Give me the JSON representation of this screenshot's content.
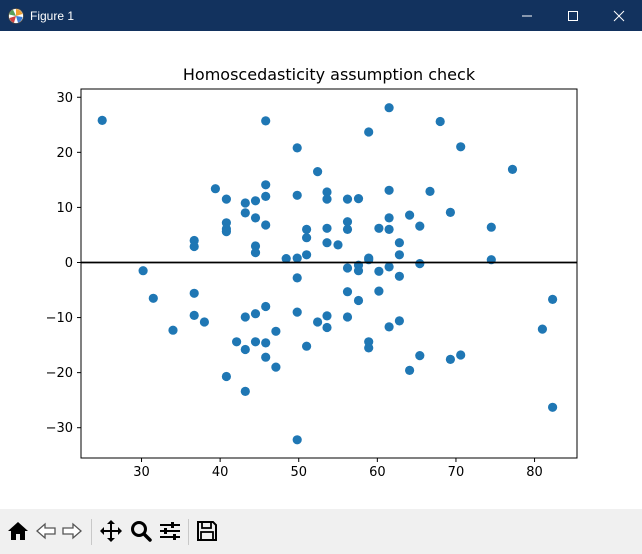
{
  "window": {
    "title": "Figure 1",
    "minimize_icon": "minimize-icon",
    "maximize_icon": "maximize-icon",
    "close_icon": "close-icon"
  },
  "toolbar": {
    "items": [
      "home-icon",
      "back-arrow-icon",
      "forward-arrow-icon",
      "pan-icon",
      "zoom-icon",
      "configure-subplots-icon",
      "save-icon"
    ]
  },
  "colors": {
    "titlebar": "#12325e",
    "points": "#1f77b4",
    "reference_line": "#000000",
    "toolbar": "#f0f0f0"
  },
  "chart_data": {
    "type": "scatter",
    "title": "Homoscedasticity assumption check",
    "xlabel": "",
    "ylabel": "",
    "xlim": [
      22.3,
      85.4
    ],
    "ylim": [
      -35.5,
      31.5
    ],
    "xticks": [
      30,
      40,
      50,
      60,
      70,
      80
    ],
    "yticks": [
      -30,
      -20,
      -10,
      0,
      10,
      20,
      30
    ],
    "hline": 0,
    "grid": false,
    "legend": "none",
    "points": [
      [
        25.0,
        25.8
      ],
      [
        30.2,
        -1.5
      ],
      [
        31.5,
        -6.5
      ],
      [
        34.0,
        -12.3
      ],
      [
        36.7,
        4.0
      ],
      [
        36.7,
        2.9
      ],
      [
        36.7,
        -5.6
      ],
      [
        36.7,
        -9.6
      ],
      [
        38.0,
        -10.8
      ],
      [
        39.4,
        13.4
      ],
      [
        40.8,
        11.5
      ],
      [
        40.8,
        7.2
      ],
      [
        40.8,
        6.1
      ],
      [
        40.8,
        5.6
      ],
      [
        40.8,
        -20.7
      ],
      [
        42.1,
        -14.4
      ],
      [
        43.2,
        10.8
      ],
      [
        43.2,
        9.0
      ],
      [
        43.2,
        -9.9
      ],
      [
        43.2,
        -15.8
      ],
      [
        43.2,
        -23.4
      ],
      [
        44.5,
        11.2
      ],
      [
        44.5,
        8.1
      ],
      [
        44.5,
        3.0
      ],
      [
        44.5,
        1.8
      ],
      [
        44.5,
        -9.3
      ],
      [
        44.5,
        -14.4
      ],
      [
        45.8,
        25.7
      ],
      [
        45.8,
        14.1
      ],
      [
        45.8,
        12.0
      ],
      [
        45.8,
        6.8
      ],
      [
        45.8,
        -8.0
      ],
      [
        45.8,
        -14.6
      ],
      [
        45.8,
        -17.2
      ],
      [
        47.1,
        -12.5
      ],
      [
        47.1,
        -19.0
      ],
      [
        48.4,
        0.7
      ],
      [
        49.8,
        20.8
      ],
      [
        49.8,
        12.2
      ],
      [
        49.8,
        0.8
      ],
      [
        49.8,
        -2.8
      ],
      [
        49.8,
        -9.0
      ],
      [
        49.8,
        -32.2
      ],
      [
        51.0,
        6.0
      ],
      [
        51.0,
        4.5
      ],
      [
        51.0,
        1.4
      ],
      [
        51.0,
        -15.2
      ],
      [
        52.4,
        16.5
      ],
      [
        52.4,
        -10.8
      ],
      [
        53.6,
        12.8
      ],
      [
        53.6,
        11.5
      ],
      [
        53.6,
        6.2
      ],
      [
        53.6,
        3.6
      ],
      [
        53.6,
        -9.7
      ],
      [
        53.6,
        -11.8
      ],
      [
        55.0,
        3.2
      ],
      [
        56.2,
        11.5
      ],
      [
        56.2,
        7.4
      ],
      [
        56.2,
        6.0
      ],
      [
        56.2,
        -1.0
      ],
      [
        56.2,
        -5.3
      ],
      [
        56.2,
        -9.9
      ],
      [
        57.6,
        11.6
      ],
      [
        57.6,
        -0.5
      ],
      [
        57.6,
        -1.5
      ],
      [
        57.6,
        -6.9
      ],
      [
        58.9,
        23.7
      ],
      [
        58.9,
        0.8
      ],
      [
        58.9,
        0.5
      ],
      [
        58.9,
        -14.4
      ],
      [
        58.9,
        -15.5
      ],
      [
        60.2,
        6.2
      ],
      [
        60.2,
        -1.6
      ],
      [
        60.2,
        -5.2
      ],
      [
        61.5,
        28.1
      ],
      [
        61.5,
        13.1
      ],
      [
        61.5,
        8.1
      ],
      [
        61.5,
        6.0
      ],
      [
        61.5,
        -0.8
      ],
      [
        61.5,
        -11.7
      ],
      [
        62.8,
        3.6
      ],
      [
        62.8,
        1.4
      ],
      [
        62.8,
        -2.5
      ],
      [
        62.8,
        -10.6
      ],
      [
        64.1,
        8.6
      ],
      [
        64.1,
        -19.6
      ],
      [
        65.4,
        6.6
      ],
      [
        65.4,
        -0.2
      ],
      [
        65.4,
        -16.9
      ],
      [
        66.7,
        12.9
      ],
      [
        68.0,
        25.6
      ],
      [
        69.3,
        9.1
      ],
      [
        69.3,
        -17.6
      ],
      [
        70.6,
        21.0
      ],
      [
        70.6,
        -16.8
      ],
      [
        74.5,
        6.4
      ],
      [
        74.5,
        0.5
      ],
      [
        77.2,
        16.9
      ],
      [
        81.0,
        -12.1
      ],
      [
        82.3,
        -6.7
      ],
      [
        82.3,
        -26.3
      ]
    ]
  }
}
